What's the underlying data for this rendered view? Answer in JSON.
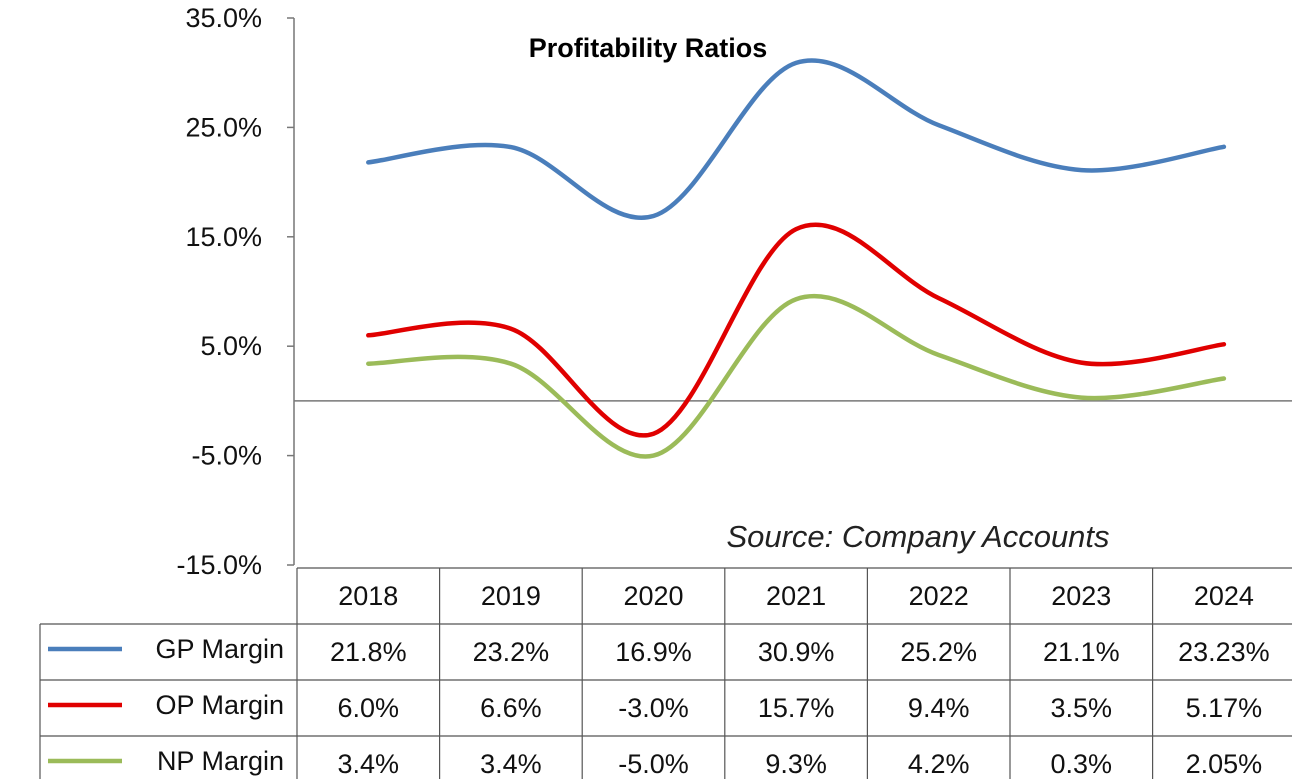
{
  "chart_data": {
    "type": "line",
    "title": "Profitability Ratios",
    "annotation": "Source: Company Accounts",
    "categories": [
      "2018",
      "2019",
      "2020",
      "2021",
      "2022",
      "2023",
      "2024"
    ],
    "y_ticks": [
      "35.0%",
      "25.0%",
      "15.0%",
      "5.0%",
      "-5.0%",
      "-15.0%"
    ],
    "ylim": [
      -15,
      35
    ],
    "grid": false,
    "series": [
      {
        "name": "GP Margin",
        "color": "#4a7ebb",
        "values": [
          21.8,
          23.2,
          16.9,
          30.9,
          25.2,
          21.1,
          23.23
        ],
        "labels": [
          "21.8%",
          "23.2%",
          "16.9%",
          "30.9%",
          "25.2%",
          "21.1%",
          "23.23%"
        ]
      },
      {
        "name": "OP Margin",
        "color": "#e00000",
        "values": [
          6.0,
          6.6,
          -3.0,
          15.7,
          9.4,
          3.5,
          5.17
        ],
        "labels": [
          "6.0%",
          "6.6%",
          "-3.0%",
          "15.7%",
          "9.4%",
          "3.5%",
          "5.17%"
        ]
      },
      {
        "name": "NP Margin",
        "color": "#9bbb59",
        "values": [
          3.4,
          3.4,
          -5.0,
          9.3,
          4.2,
          0.3,
          2.05
        ],
        "labels": [
          "3.4%",
          "3.4%",
          "-5.0%",
          "9.3%",
          "4.2%",
          "0.3%",
          "2.05%"
        ]
      }
    ]
  }
}
